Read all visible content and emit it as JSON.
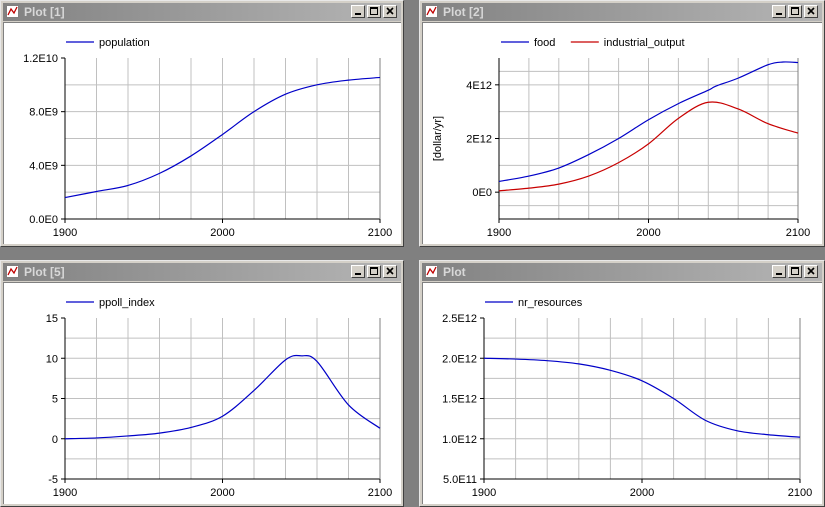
{
  "windows": [
    {
      "title": "Plot [1]"
    },
    {
      "title": "Plot [2]"
    },
    {
      "title": "Plot [5]"
    },
    {
      "title": "Plot"
    }
  ],
  "colors": {
    "blue": "#0000c8",
    "red": "#c80000",
    "grid": "#c0c0c0"
  },
  "icons": {
    "window": "plot-window-icon",
    "minimize": "minimize-icon",
    "maximize": "maximize-icon",
    "close": "close-icon"
  },
  "chart_data": [
    {
      "type": "line",
      "xlim": [
        1900,
        2100
      ],
      "ylim": [
        0,
        12000000000
      ],
      "xticks": [
        "1900",
        "2000",
        "2100"
      ],
      "yticks": [
        {
          "value": 0,
          "label": "0.0E0"
        },
        {
          "value": 4000000000,
          "label": "4.0E9"
        },
        {
          "value": 8000000000,
          "label": "8.0E9"
        },
        {
          "value": 12000000000,
          "label": "1.2E10"
        }
      ],
      "grid": true,
      "legend": "top-left",
      "ylabel": "",
      "series": [
        {
          "name": "population",
          "color": "#0000c8",
          "x": [
            1900,
            1920,
            1940,
            1960,
            1980,
            2000,
            2020,
            2040,
            2060,
            2080,
            2100
          ],
          "y": [
            1600000000,
            2050000000,
            2500000000,
            3400000000,
            4700000000,
            6300000000,
            8000000000,
            9300000000,
            10000000000,
            10350000000,
            10550000000
          ]
        }
      ]
    },
    {
      "type": "line",
      "xlim": [
        1900,
        2100
      ],
      "ylim": [
        -1000000000000,
        5000000000000
      ],
      "xticks": [
        "1900",
        "2000",
        "2100"
      ],
      "yticks": [
        {
          "value": 0,
          "label": "0E0"
        },
        {
          "value": 2000000000000,
          "label": "2E12"
        },
        {
          "value": 4000000000000,
          "label": "4E12"
        }
      ],
      "grid": true,
      "legend": "top-left",
      "ylabel": "[dollar/yr]",
      "series": [
        {
          "name": "food",
          "color": "#0000c8",
          "x": [
            1900,
            1920,
            1940,
            1960,
            1980,
            2000,
            2020,
            2040,
            2045,
            2060,
            2080,
            2090,
            2100
          ],
          "y": [
            400000000000,
            600000000000,
            900000000000,
            1400000000000,
            2000000000000,
            2700000000000,
            3300000000000,
            3800000000000,
            3950000000000,
            4250000000000,
            4750000000000,
            4850000000000,
            4830000000000
          ]
        },
        {
          "name": "industrial_output",
          "color": "#c80000",
          "x": [
            1900,
            1920,
            1940,
            1960,
            1980,
            2000,
            2020,
            2040,
            2060,
            2080,
            2100
          ],
          "y": [
            50000000000,
            150000000000,
            300000000000,
            600000000000,
            1100000000000,
            1800000000000,
            2750000000000,
            3350000000000,
            3100000000000,
            2550000000000,
            2200000000000
          ]
        }
      ]
    },
    {
      "type": "line",
      "xlim": [
        1900,
        2100
      ],
      "ylim": [
        -5,
        15
      ],
      "xticks": [
        "1900",
        "2000",
        "2100"
      ],
      "yticks": [
        {
          "value": -5,
          "label": "-5"
        },
        {
          "value": 0,
          "label": "0"
        },
        {
          "value": 5,
          "label": "5"
        },
        {
          "value": 10,
          "label": "10"
        },
        {
          "value": 15,
          "label": "15"
        }
      ],
      "grid": true,
      "legend": "top-left",
      "ylabel": "",
      "series": [
        {
          "name": "ppoll_index",
          "color": "#0000c8",
          "x": [
            1900,
            1920,
            1940,
            1960,
            1980,
            2000,
            2020,
            2040,
            2050,
            2060,
            2080,
            2100
          ],
          "y": [
            0,
            0.1,
            0.35,
            0.7,
            1.4,
            2.8,
            6.0,
            9.8,
            10.3,
            9.6,
            4.2,
            1.3
          ]
        }
      ]
    },
    {
      "type": "line",
      "xlim": [
        1900,
        2100
      ],
      "ylim": [
        500000000000,
        2500000000000
      ],
      "xticks": [
        "1900",
        "2000",
        "2100"
      ],
      "yticks": [
        {
          "value": 500000000000,
          "label": "5.0E11"
        },
        {
          "value": 1000000000000,
          "label": "1.0E12"
        },
        {
          "value": 1500000000000,
          "label": "1.5E12"
        },
        {
          "value": 2000000000000,
          "label": "2.0E12"
        },
        {
          "value": 2500000000000,
          "label": "2.5E12"
        }
      ],
      "grid": true,
      "legend": "top-left",
      "ylabel": "",
      "series": [
        {
          "name": "nr_resources",
          "color": "#0000c8",
          "x": [
            1900,
            1920,
            1940,
            1960,
            1980,
            2000,
            2020,
            2040,
            2060,
            2080,
            2100
          ],
          "y": [
            2000000000000,
            1990000000000,
            1970000000000,
            1930000000000,
            1850000000000,
            1720000000000,
            1500000000000,
            1230000000000,
            1100000000000,
            1050000000000,
            1020000000000
          ]
        }
      ]
    }
  ]
}
